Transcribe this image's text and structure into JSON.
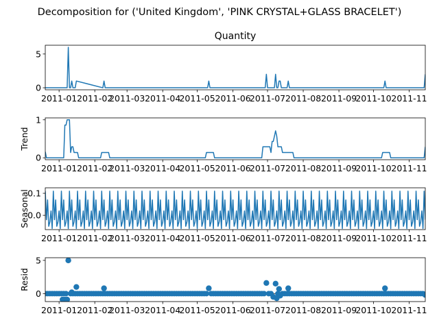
{
  "figure_title": "Decomposition for ('United Kingdom', 'PINK CRYSTAL+GLASS BRACELET')",
  "colors": {
    "series": "#1f77b4",
    "axes": "#000000",
    "background": "#ffffff"
  },
  "x_tick_labels": [
    "2011-01",
    "2011-02",
    "2011-03",
    "2011-04",
    "2011-05",
    "2011-06",
    "2011-07",
    "2011-08",
    "2011-09",
    "2011-10",
    "2011-11"
  ],
  "chart_data": [
    {
      "type": "line",
      "title": "Quantity",
      "ylabel": "",
      "xlim": [
        "2010-12-20",
        "2011-11-15"
      ],
      "ylim": [
        -0.3,
        6.3
      ],
      "y_ticks": [
        0,
        5
      ],
      "y_tick_labels": [
        "0",
        "5"
      ],
      "x_ticks": [
        "2011-01-01",
        "2011-02-01",
        "2011-03-01",
        "2011-04-01",
        "2011-05-01",
        "2011-06-01",
        "2011-07-01",
        "2011-08-01",
        "2011-09-01",
        "2011-10-01",
        "2011-11-01"
      ],
      "x": [
        "2010-12-20",
        "2011-01-08",
        "2011-01-09",
        "2011-01-10",
        "2011-01-11",
        "2011-01-12",
        "2011-01-13",
        "2011-01-14",
        "2011-01-15",
        "2011-01-16",
        "2011-02-08",
        "2011-02-09",
        "2011-02-10",
        "2011-05-10",
        "2011-05-11",
        "2011-05-12",
        "2011-06-29",
        "2011-06-30",
        "2011-07-01",
        "2011-07-07",
        "2011-07-08",
        "2011-07-09",
        "2011-07-10",
        "2011-07-11",
        "2011-07-12",
        "2011-07-13",
        "2011-07-18",
        "2011-07-19",
        "2011-07-20",
        "2011-10-10",
        "2011-10-11",
        "2011-10-12",
        "2011-11-13",
        "2011-11-14",
        "2011-11-15"
      ],
      "y": [
        0,
        0,
        6,
        0,
        0,
        1,
        0,
        0,
        0,
        1,
        0,
        1,
        0,
        0,
        1,
        0,
        0,
        2,
        0,
        0,
        2,
        0,
        0,
        1,
        1,
        0,
        0,
        1,
        0,
        0,
        1,
        0,
        0,
        0,
        2
      ]
    },
    {
      "type": "line",
      "title": "",
      "ylabel": "Trend",
      "xlim": [
        "2010-12-20",
        "2011-11-15"
      ],
      "ylim": [
        -0.05,
        1.05
      ],
      "y_ticks": [
        0,
        1
      ],
      "y_tick_labels": [
        "0",
        "1"
      ],
      "x": [
        "2010-12-20",
        "2010-12-21",
        "2011-01-05",
        "2011-01-06",
        "2011-01-07",
        "2011-01-08",
        "2011-01-09",
        "2011-01-10",
        "2011-01-11",
        "2011-01-12",
        "2011-01-13",
        "2011-01-14",
        "2011-01-17",
        "2011-01-18",
        "2011-01-23",
        "2011-02-06",
        "2011-02-07",
        "2011-02-13",
        "2011-02-14",
        "2011-05-08",
        "2011-05-09",
        "2011-05-15",
        "2011-05-16",
        "2011-06-26",
        "2011-06-27",
        "2011-07-03",
        "2011-07-04",
        "2011-07-05",
        "2011-07-06",
        "2011-07-07",
        "2011-07-08",
        "2011-07-09",
        "2011-07-10",
        "2011-07-11",
        "2011-07-13",
        "2011-07-14",
        "2011-07-16",
        "2011-07-17",
        "2011-07-23",
        "2011-07-24",
        "2011-10-08",
        "2011-10-09",
        "2011-10-15",
        "2011-10-16",
        "2011-11-14",
        "2011-11-15"
      ],
      "y": [
        0.16,
        0,
        0,
        0.86,
        0.86,
        1,
        1,
        1,
        0.14,
        0.29,
        0.29,
        0.14,
        0.14,
        0,
        0,
        0,
        0.14,
        0.14,
        0,
        0,
        0.14,
        0.14,
        0,
        0,
        0.29,
        0.29,
        0.14,
        0.43,
        0.43,
        0.57,
        0.71,
        0.57,
        0.29,
        0.29,
        0.29,
        0.14,
        0.14,
        0.14,
        0.14,
        0,
        0,
        0.14,
        0.14,
        0,
        0,
        0.29
      ]
    },
    {
      "type": "line",
      "title": "",
      "ylabel": "Seasonal",
      "xlim": [
        "2010-12-20",
        "2011-11-15"
      ],
      "ylim": [
        -0.065,
        0.125
      ],
      "y_ticks": [
        0.0,
        0.1
      ],
      "y_tick_labels": [
        "0.0",
        "0.1"
      ],
      "period_days": 7,
      "weekly_pattern": [
        0.11,
        -0.02,
        0.07,
        -0.05,
        -0.03,
        0.02,
        -0.06
      ],
      "start": "2010-12-20",
      "end": "2011-11-15"
    },
    {
      "type": "scatter",
      "title": "",
      "ylabel": "Resid",
      "xlim": [
        "2010-12-20",
        "2011-11-15"
      ],
      "ylim": [
        -1.2,
        5.4
      ],
      "y_ticks": [
        0,
        5
      ],
      "y_tick_labels": [
        "0",
        "5"
      ],
      "baseline_every_days": 2,
      "start": "2010-12-20",
      "end": "2011-11-15",
      "outliers": [
        {
          "x": "2011-01-04",
          "y": -0.9
        },
        {
          "x": "2011-01-06",
          "y": -0.9
        },
        {
          "x": "2011-01-08",
          "y": -0.9
        },
        {
          "x": "2011-01-09",
          "y": 5.0
        },
        {
          "x": "2011-01-12",
          "y": 0.2
        },
        {
          "x": "2011-01-16",
          "y": 1.0
        },
        {
          "x": "2011-02-09",
          "y": 0.8
        },
        {
          "x": "2011-05-11",
          "y": 0.8
        },
        {
          "x": "2011-06-30",
          "y": 1.6
        },
        {
          "x": "2011-07-06",
          "y": -0.5
        },
        {
          "x": "2011-07-08",
          "y": 1.5
        },
        {
          "x": "2011-07-09",
          "y": -0.7
        },
        {
          "x": "2011-07-11",
          "y": 0.7
        },
        {
          "x": "2011-07-12",
          "y": -0.3
        },
        {
          "x": "2011-07-19",
          "y": 0.8
        },
        {
          "x": "2011-10-11",
          "y": 0.8
        },
        {
          "x": "2011-11-15",
          "y": -0.2
        }
      ]
    }
  ]
}
